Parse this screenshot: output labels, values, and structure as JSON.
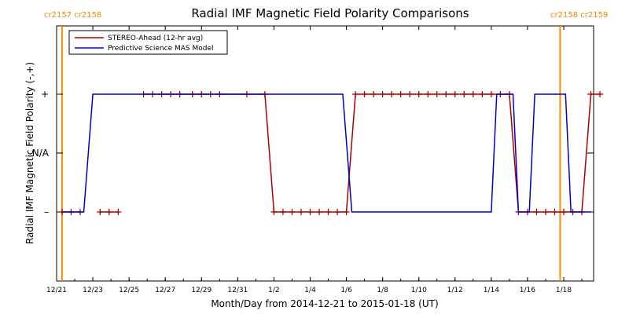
{
  "chart_data": {
    "type": "line",
    "title": "Radial IMF Magnetic Field Polarity Comparisons",
    "xlabel": "Month/Day from 2014-12-21 to 2015-01-18 (UT)",
    "ylabel": "Radial IMF Magnetic Field Polarity (-,+)",
    "x_range_days": [
      0,
      28
    ],
    "x_ticks": [
      {
        "day": 0,
        "label": "12/21"
      },
      {
        "day": 2,
        "label": "12/23"
      },
      {
        "day": 4,
        "label": "12/25"
      },
      {
        "day": 6,
        "label": "12/27"
      },
      {
        "day": 8,
        "label": "12/29"
      },
      {
        "day": 10,
        "label": "12/31"
      },
      {
        "day": 12,
        "label": "1/2"
      },
      {
        "day": 14,
        "label": "1/4"
      },
      {
        "day": 16,
        "label": "1/6"
      },
      {
        "day": 18,
        "label": "1/8"
      },
      {
        "day": 20,
        "label": "1/10"
      },
      {
        "day": 22,
        "label": "1/12"
      },
      {
        "day": 24,
        "label": "1/14"
      },
      {
        "day": 26,
        "label": "1/16"
      },
      {
        "day": 28,
        "label": "1/18"
      }
    ],
    "y_ticks": [
      {
        "value": 1,
        "label": "+"
      },
      {
        "value": 0,
        "label": "N/A"
      },
      {
        "value": -1,
        "label": "–"
      }
    ],
    "ylim": [
      -2.1,
      2.1
    ],
    "grid": false,
    "legend_position": "top-left",
    "carrington_markers": [
      {
        "day": 0.3,
        "labels": [
          "cr2157",
          "cr2158"
        ],
        "color": "#ff8c00"
      },
      {
        "day": 27.8,
        "labels": [
          "cr2158",
          "cr2159"
        ],
        "color": "#ff8c00"
      }
    ],
    "series": [
      {
        "name": "STEREO-Ahead (12-hr avg)",
        "color": "#aa0000",
        "markers": "plus",
        "segments": [
          [
            [
              0.3,
              -1
            ],
            [
              0.8,
              -1
            ],
            [
              1.3,
              -1
            ]
          ],
          [
            [
              2.4,
              -1
            ],
            [
              2.9,
              -1
            ],
            [
              3.4,
              -1
            ]
          ],
          [
            [
              4.8,
              1
            ],
            [
              5.3,
              1
            ],
            [
              5.8,
              1
            ],
            [
              6.3,
              1
            ],
            [
              6.8,
              1
            ],
            [
              7.5,
              1
            ],
            [
              8,
              1
            ],
            [
              8.5,
              1
            ],
            [
              9,
              1
            ],
            [
              10.5,
              1
            ],
            [
              11.5,
              1
            ],
            [
              12,
              -1
            ],
            [
              12.5,
              -1
            ],
            [
              13,
              -1
            ],
            [
              13.5,
              -1
            ],
            [
              14,
              -1
            ],
            [
              14.5,
              -1
            ],
            [
              15,
              -1
            ],
            [
              15.5,
              -1
            ],
            [
              16,
              -1
            ],
            [
              16.5,
              1
            ],
            [
              17,
              1
            ],
            [
              17.5,
              1
            ],
            [
              18,
              1
            ],
            [
              18.5,
              1
            ],
            [
              19,
              1
            ],
            [
              19.5,
              1
            ],
            [
              20,
              1
            ],
            [
              20.5,
              1
            ],
            [
              21,
              1
            ],
            [
              21.5,
              1
            ],
            [
              22,
              1
            ],
            [
              22.5,
              1
            ],
            [
              23,
              1
            ],
            [
              23.5,
              1
            ],
            [
              24,
              1
            ],
            [
              24.5,
              1
            ],
            [
              25,
              1
            ],
            [
              25.5,
              -1
            ],
            [
              26,
              -1
            ],
            [
              26.5,
              -1
            ],
            [
              27,
              -1
            ],
            [
              27.5,
              -1
            ],
            [
              28,
              -1
            ],
            [
              28.5,
              -1
            ],
            [
              29,
              -1
            ],
            [
              29.5,
              1
            ],
            [
              30,
              1
            ]
          ]
        ]
      },
      {
        "name": "Predictive Science MAS Model",
        "color": "#0000cc",
        "markers": "none",
        "segments": [
          [
            [
              0.3,
              -1
            ],
            [
              1.5,
              -1
            ],
            [
              2.0,
              1
            ],
            [
              15.8,
              1
            ],
            [
              16.3,
              -1
            ],
            [
              24.0,
              -1
            ],
            [
              24.3,
              1
            ],
            [
              25.2,
              1
            ],
            [
              25.5,
              -1
            ],
            [
              26.1,
              -1
            ],
            [
              26.4,
              1
            ],
            [
              28.1,
              1
            ],
            [
              28.4,
              -1
            ],
            [
              29.5,
              -1
            ]
          ]
        ]
      }
    ]
  }
}
